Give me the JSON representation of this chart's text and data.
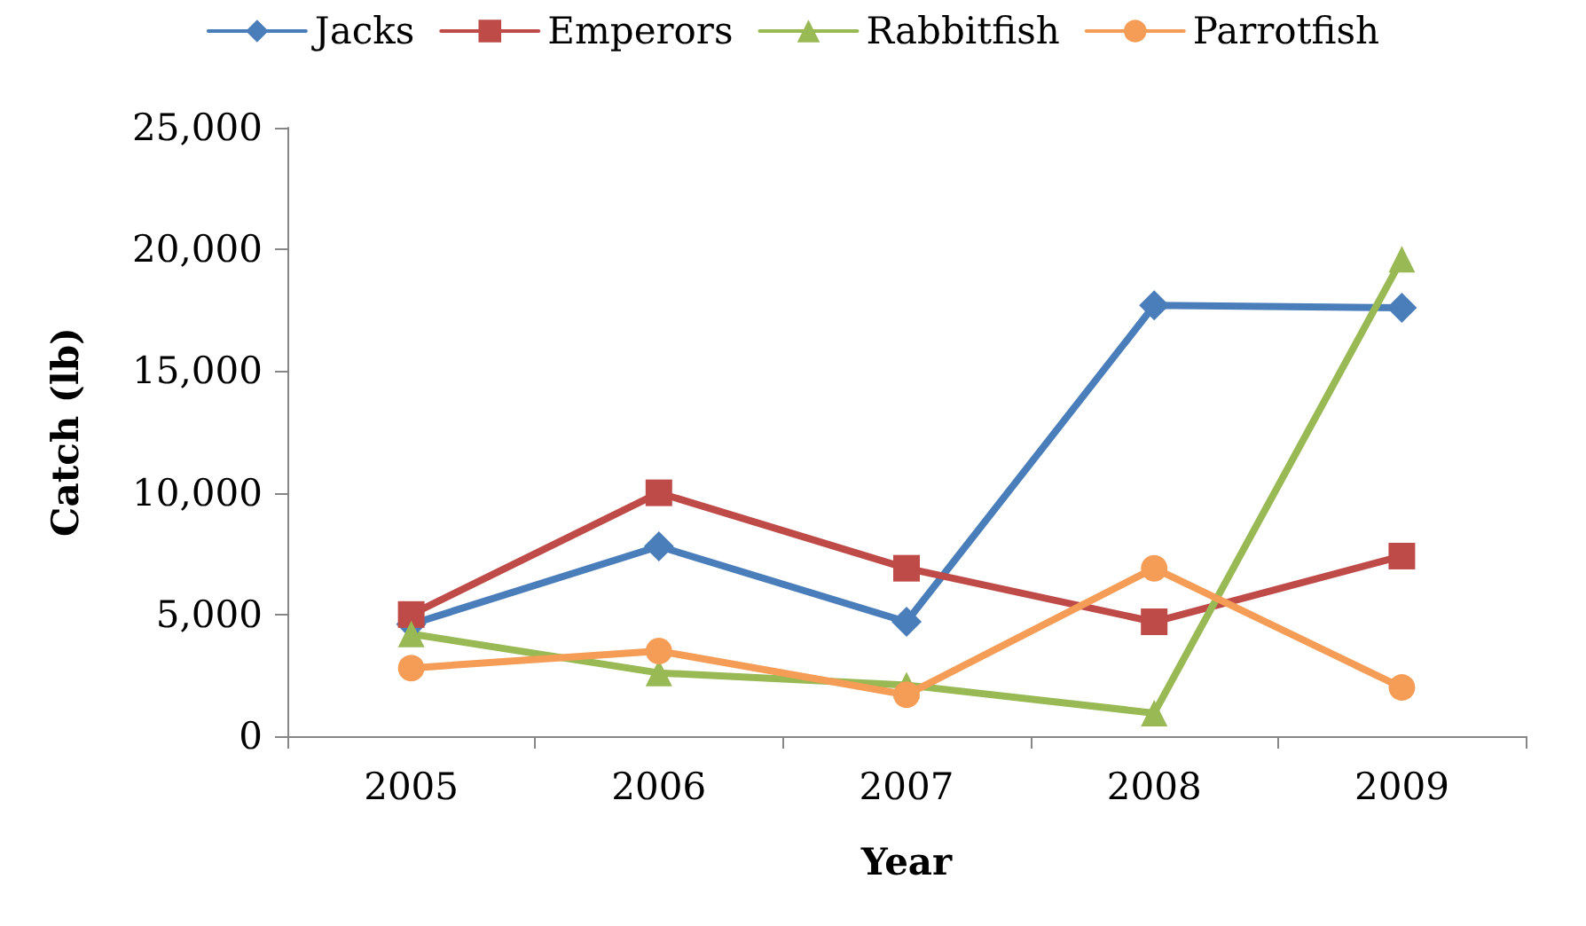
{
  "chart_data": {
    "type": "line",
    "xlabel": "Year",
    "ylabel": "Catch (lb)",
    "categories": [
      "2005",
      "2006",
      "2007",
      "2008",
      "2009"
    ],
    "series": [
      {
        "name": "Jacks",
        "color": "#4a7ebb",
        "marker": "diamond",
        "values": [
          4600,
          7800,
          4700,
          17700,
          17600
        ]
      },
      {
        "name": "Emperors",
        "color": "#be4b48",
        "marker": "square",
        "values": [
          5000,
          10000,
          6900,
          4700,
          7400
        ]
      },
      {
        "name": "Rabbitfish",
        "color": "#98b954",
        "marker": "triangle",
        "values": [
          4200,
          2600,
          2100,
          950,
          19600
        ]
      },
      {
        "name": "Parrotfish",
        "color": "#f59d56",
        "marker": "circle",
        "values": [
          2800,
          3500,
          1700,
          6900,
          2000
        ]
      }
    ],
    "ylim": [
      0,
      25000
    ],
    "yticks": [
      0,
      {
        "value": 5000,
        "label": "5,000"
      },
      {
        "value": 10000,
        "label": "10,000"
      },
      {
        "value": 15000,
        "label": "15,000"
      },
      {
        "value": 20000,
        "label": "20,000"
      },
      {
        "value": 25000,
        "label": "25,000"
      }
    ],
    "grid": false,
    "legend": "top",
    "line_style": "solid"
  }
}
